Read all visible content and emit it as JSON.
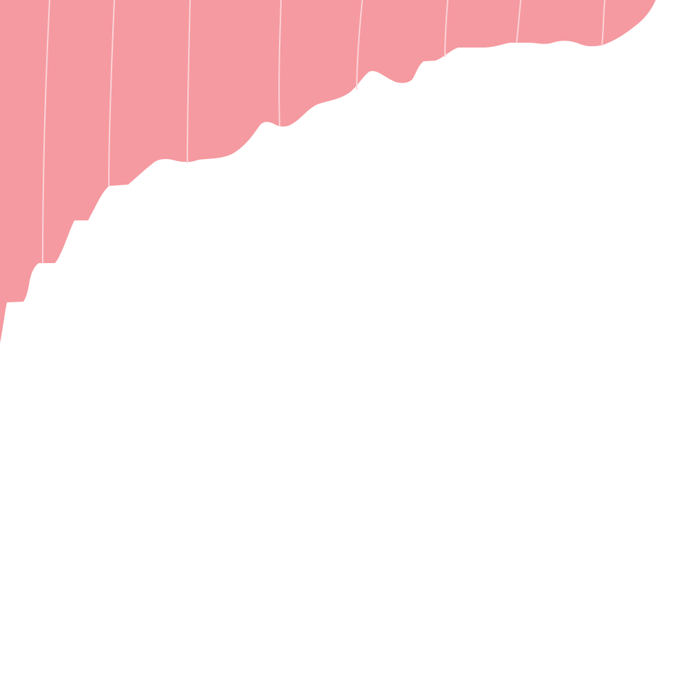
{
  "artwork": {
    "fill_color": "#f59aa0",
    "stripe_color": "#fbd4d8",
    "background_color": "#ffffff"
  }
}
